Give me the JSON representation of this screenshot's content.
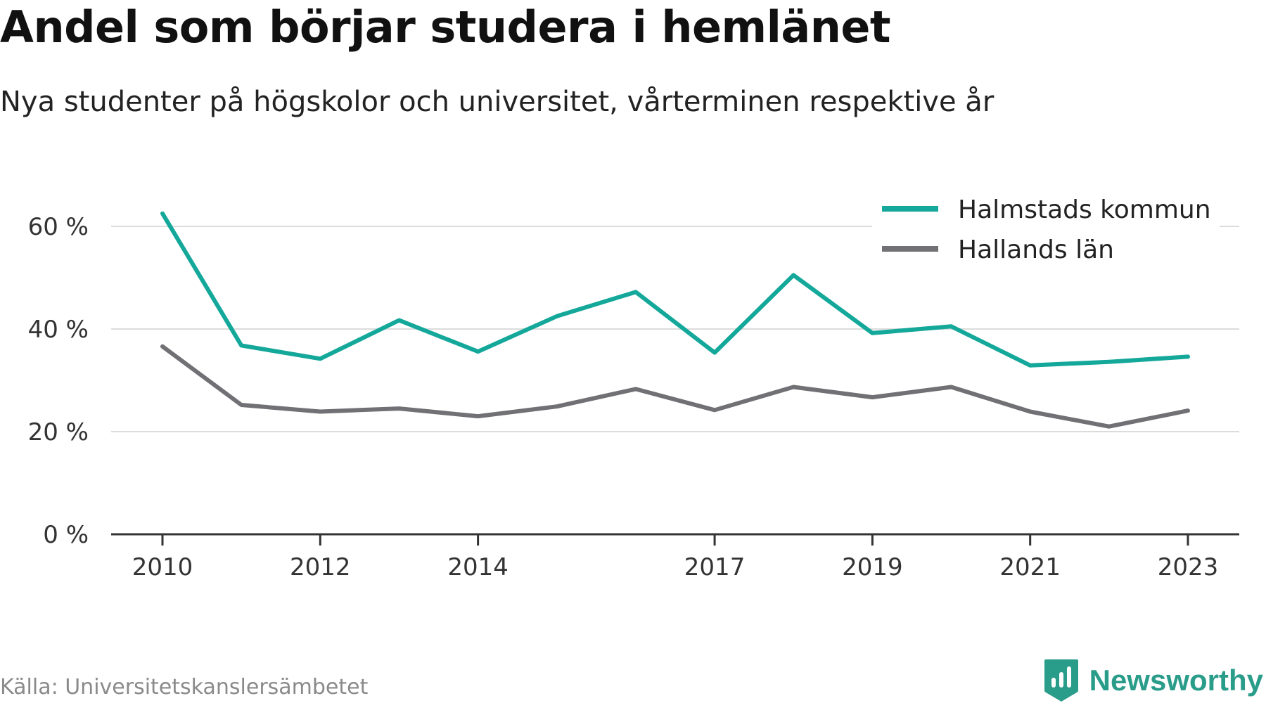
{
  "title": "Andel som börjar studera i hemlänet",
  "subtitle": "Nya studenter på högskolor och universitet, vårterminen respektive år",
  "source": "Källa: Universitetskanslersämbetet",
  "brand": {
    "name": "Newsworthy",
    "icon": "newsworthy-logo-icon",
    "color": "#2a9c8a"
  },
  "chart_data": {
    "type": "line",
    "x": [
      2010,
      2011,
      2012,
      2013,
      2014,
      2015,
      2016,
      2017,
      2018,
      2019,
      2020,
      2021,
      2022,
      2023
    ],
    "x_tick_labels": [
      "2010",
      "2012",
      "2014",
      "2017",
      "2019",
      "2021",
      "2023"
    ],
    "y_ticks": [
      0,
      20,
      40,
      60
    ],
    "y_tick_labels": [
      "0 %",
      "20 %",
      "40 %",
      "60 %"
    ],
    "ylim": [
      0,
      63
    ],
    "grid": true,
    "legend_position": "top-right",
    "series": [
      {
        "name": "Halmstads kommun",
        "color": "#14a89a",
        "values": [
          62.5,
          36.8,
          34.2,
          41.7,
          35.6,
          42.5,
          47.2,
          35.4,
          50.5,
          39.2,
          40.5,
          32.9,
          33.6,
          34.6
        ]
      },
      {
        "name": "Hallands län",
        "color": "#707075",
        "values": [
          36.6,
          25.2,
          23.9,
          24.5,
          23.0,
          24.9,
          28.3,
          24.2,
          28.7,
          26.7,
          28.7,
          23.9,
          21.0,
          24.1
        ]
      }
    ]
  }
}
